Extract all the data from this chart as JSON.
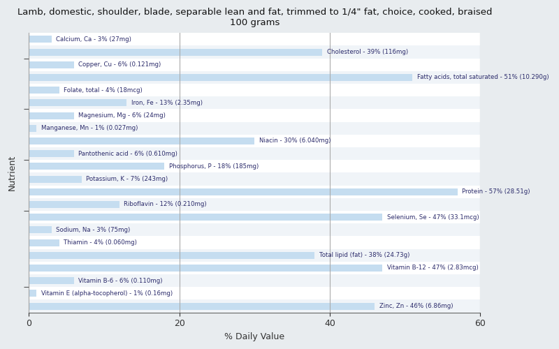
{
  "title": "Lamb, domestic, shoulder, blade, separable lean and fat, trimmed to 1/4\" fat, choice, cooked, braised\n100 grams",
  "xlabel": "% Daily Value",
  "ylabel": "Nutrient",
  "xlim": [
    0,
    60
  ],
  "bar_color": "#c5ddf0",
  "row_colors": [
    "#f0f4f8",
    "#ffffff"
  ],
  "background_color": "#e8ecef",
  "text_color": "#2a2a6a",
  "nutrients": [
    {
      "label": "Calcium, Ca - 3% (27mg)",
      "value": 3
    },
    {
      "label": "Cholesterol - 39% (116mg)",
      "value": 39
    },
    {
      "label": "Copper, Cu - 6% (0.121mg)",
      "value": 6
    },
    {
      "label": "Fatty acids, total saturated - 51% (10.290g)",
      "value": 51
    },
    {
      "label": "Folate, total - 4% (18mcg)",
      "value": 4
    },
    {
      "label": "Iron, Fe - 13% (2.35mg)",
      "value": 13
    },
    {
      "label": "Magnesium, Mg - 6% (24mg)",
      "value": 6
    },
    {
      "label": "Manganese, Mn - 1% (0.027mg)",
      "value": 1
    },
    {
      "label": "Niacin - 30% (6.040mg)",
      "value": 30
    },
    {
      "label": "Pantothenic acid - 6% (0.610mg)",
      "value": 6
    },
    {
      "label": "Phosphorus, P - 18% (185mg)",
      "value": 18
    },
    {
      "label": "Potassium, K - 7% (243mg)",
      "value": 7
    },
    {
      "label": "Protein - 57% (28.51g)",
      "value": 57
    },
    {
      "label": "Riboflavin - 12% (0.210mg)",
      "value": 12
    },
    {
      "label": "Selenium, Se - 47% (33.1mcg)",
      "value": 47
    },
    {
      "label": "Sodium, Na - 3% (75mg)",
      "value": 3
    },
    {
      "label": "Thiamin - 4% (0.060mg)",
      "value": 4
    },
    {
      "label": "Total lipid (fat) - 38% (24.73g)",
      "value": 38
    },
    {
      "label": "Vitamin B-12 - 47% (2.83mcg)",
      "value": 47
    },
    {
      "label": "Vitamin B-6 - 6% (0.110mg)",
      "value": 6
    },
    {
      "label": "Vitamin E (alpha-tocopherol) - 1% (0.16mg)",
      "value": 1
    },
    {
      "label": "Zinc, Zn - 46% (6.86mg)",
      "value": 46
    }
  ]
}
